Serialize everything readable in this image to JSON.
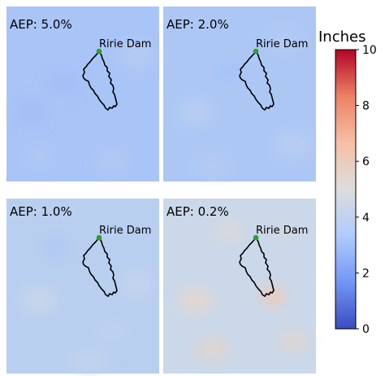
{
  "panels": [
    {
      "label": "AEP: 5.0%",
      "base_color": "#a9c4f7",
      "dam_label": "Ririe Dam"
    },
    {
      "label": "AEP: 2.0%",
      "base_color": "#adc7f5",
      "dam_label": "Ririe Dam"
    },
    {
      "label": "AEP: 1.0%",
      "base_color": "#b9cff0",
      "dam_label": "Ririe Dam"
    },
    {
      "label": "AEP: 0.2%",
      "base_color": "#cad8ea",
      "dam_label": "Ririe Dam"
    }
  ],
  "colorbar": {
    "title": "Inches",
    "min": 0,
    "max": 10,
    "ticks": [
      "0",
      "2",
      "4",
      "6",
      "8",
      "10"
    ],
    "colormap": "coolwarm",
    "colors": [
      "#3b4cc0",
      "#7396f5",
      "#b0cbfc",
      "#dcdddd",
      "#f6bfa6",
      "#ec8165",
      "#b40426"
    ]
  },
  "dam_marker_color": "#2ca02c",
  "outline_color": "#000000"
}
